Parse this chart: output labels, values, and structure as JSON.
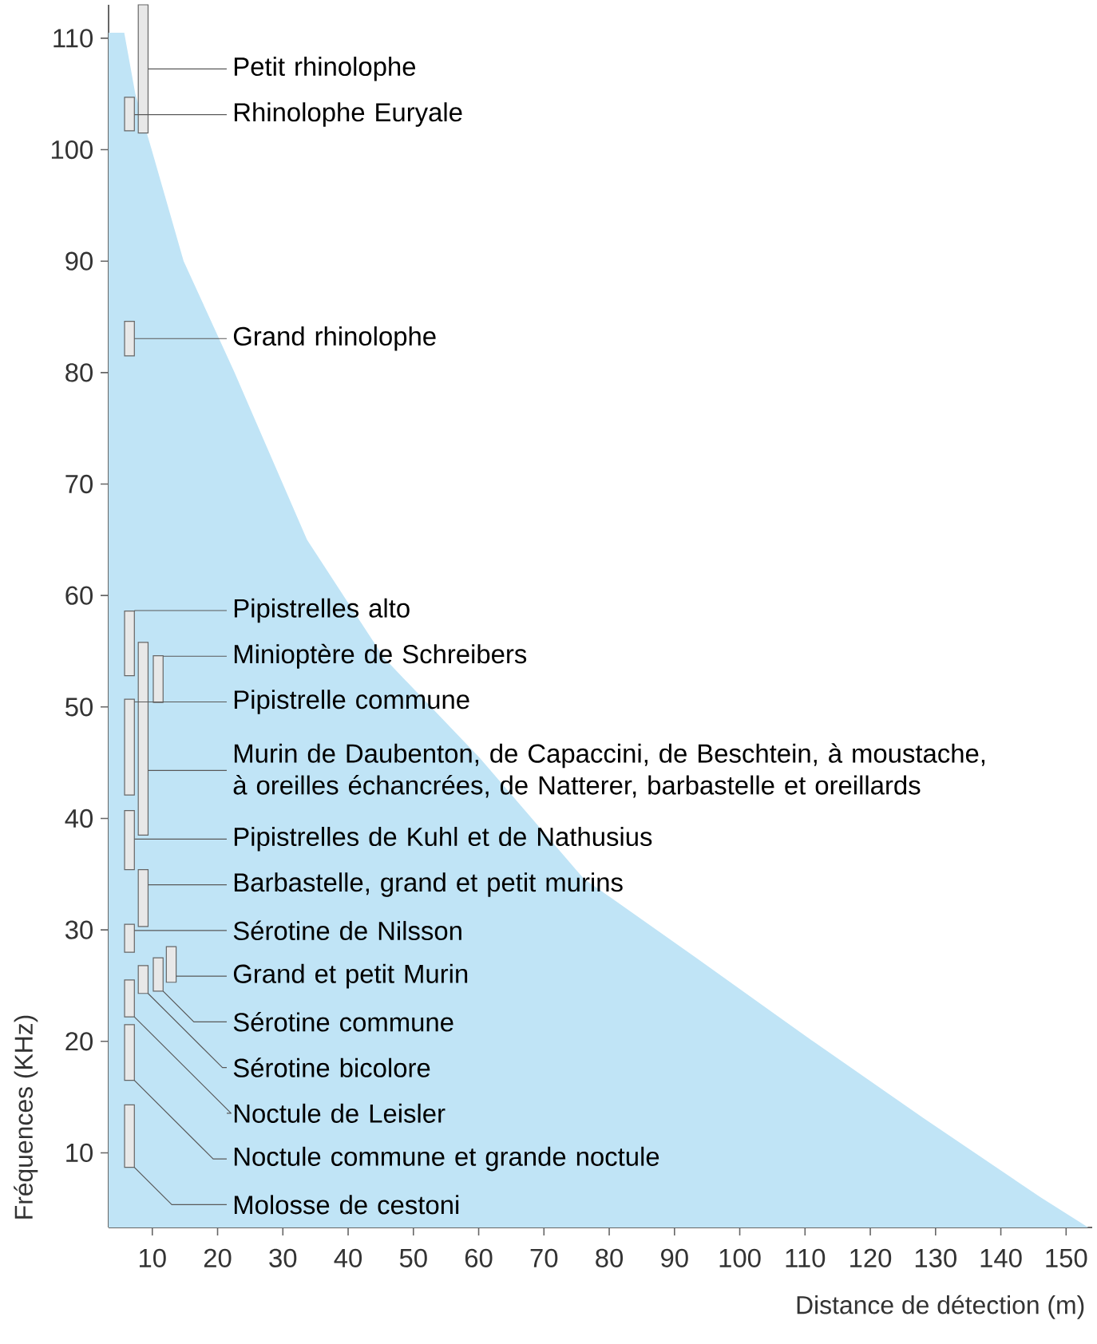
{
  "chart_data": {
    "type": "bar",
    "legend": "right",
    "xlabel": "Distance de détection (m)",
    "ylabel": "Fréquences (KHz)",
    "xlim": [
      3.3,
      154
    ],
    "ylim": [
      3.3,
      113
    ],
    "xticks": [
      10,
      20,
      30,
      40,
      50,
      60,
      70,
      80,
      90,
      100,
      110,
      120,
      130,
      140,
      150
    ],
    "yticks": [
      10,
      20,
      30,
      40,
      50,
      60,
      70,
      80,
      90,
      100,
      110
    ],
    "series": [
      {
        "type": "area",
        "color": "#c0e4f6",
        "x": [
          3.3,
          5.7,
          7.4,
          9.9,
          14.8,
          22.6,
          33.7,
          45.5,
          60.2,
          76.1,
          93.3,
          110.5,
          128.2,
          146.1,
          153.4
        ],
        "values": [
          110.5,
          110.5,
          105,
          100,
          90,
          80,
          65,
          54.4,
          45.4,
          34.6,
          27.5,
          20.3,
          13.1,
          6.0,
          3.3
        ]
      },
      {
        "name": "Petit rhinolophe",
        "color": "#e8e8e8",
        "x": [
          8.6
        ],
        "base": [
          101.5
        ],
        "values": [
          11.5
        ]
      },
      {
        "name": "Rhinolophe Euryale",
        "color": "#e8e8e8",
        "x": [
          6.5
        ],
        "base": [
          101.7
        ],
        "values": [
          3.0
        ]
      },
      {
        "name": "Grand rhinolophe",
        "color": "#e8e8e8",
        "x": [
          6.5
        ],
        "base": [
          81.5
        ],
        "values": [
          3.1
        ]
      },
      {
        "name": "Pipistrelles alto",
        "color": "#e8e8e8",
        "x": [
          6.5
        ],
        "base": [
          52.8
        ],
        "values": [
          5.8
        ]
      },
      {
        "name": "Minioptère de Schreibers",
        "color": "#e8e8e8",
        "x": [
          10.9
        ],
        "base": [
          50.4
        ],
        "values": [
          4.2
        ]
      },
      {
        "name": "Pipistrelle commune",
        "color": "#e8e8e8",
        "x": [
          6.5
        ],
        "base": [
          42.1
        ],
        "values": [
          8.6
        ]
      },
      {
        "name": "Murin de Daubenton, de Capaccini, de Beschtein, à moustache, à oreilles échancrées, de Natterer, barbastelle et oreillards",
        "color": "#e8e8e8",
        "x": [
          8.6
        ],
        "base": [
          38.5
        ],
        "values": [
          17.3
        ]
      },
      {
        "name": "Pipistrelles de Kuhl et de Nathusius",
        "color": "#e8e8e8",
        "x": [
          6.5
        ],
        "base": [
          35.4
        ],
        "values": [
          5.3
        ]
      },
      {
        "name": "Barbastelle, grand et petit  murins",
        "color": "#e8e8e8",
        "x": [
          8.6
        ],
        "base": [
          30.3
        ],
        "values": [
          5.1
        ]
      },
      {
        "name": "Sérotine de Nilsson",
        "color": "#e8e8e8",
        "x": [
          6.5
        ],
        "base": [
          28.0
        ],
        "values": [
          2.5
        ]
      },
      {
        "name": "Grand et petit Murin",
        "color": "#e8e8e8",
        "x": [
          12.9
        ],
        "base": [
          25.3
        ],
        "values": [
          3.2
        ]
      },
      {
        "name": "Sérotine commune",
        "color": "#e8e8e8",
        "x": [
          10.9
        ],
        "base": [
          24.5
        ],
        "values": [
          3.0
        ]
      },
      {
        "name": "Sérotine bicolore",
        "color": "#e8e8e8",
        "x": [
          8.6
        ],
        "base": [
          24.3
        ],
        "values": [
          2.5
        ]
      },
      {
        "name": "Noctule de Leisler",
        "color": "#e8e8e8",
        "x": [
          6.5
        ],
        "base": [
          22.2
        ],
        "values": [
          3.3
        ]
      },
      {
        "name": "Noctule commune et grande noctule",
        "color": "#e8e8e8",
        "x": [
          6.5
        ],
        "base": [
          16.5
        ],
        "values": [
          5.0
        ]
      },
      {
        "name": "Molosse de cestoni",
        "color": "#e8e8e8",
        "x": [
          6.5
        ],
        "base": [
          8.7
        ],
        "values": [
          5.6
        ]
      }
    ]
  }
}
